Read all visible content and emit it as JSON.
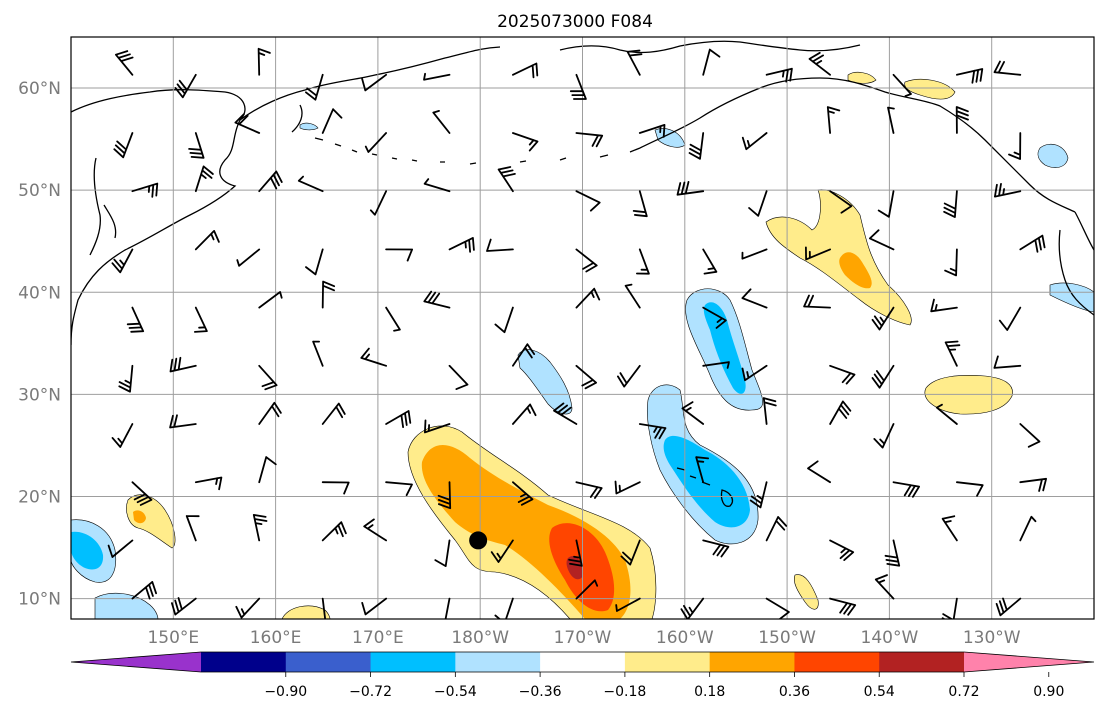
{
  "title": "2025073000 F084",
  "map": {
    "lat_range": [
      8,
      65
    ],
    "lon_range": [
      140,
      240
    ],
    "lat_ticks": [
      {
        "value": 10,
        "label": "10°N"
      },
      {
        "value": 20,
        "label": "20°N"
      },
      {
        "value": 30,
        "label": "30°N"
      },
      {
        "value": 40,
        "label": "40°N"
      },
      {
        "value": 50,
        "label": "50°N"
      },
      {
        "value": 60,
        "label": "60°N"
      }
    ],
    "lon_ticks": [
      {
        "value": 150,
        "label": "150°E"
      },
      {
        "value": 160,
        "label": "160°E"
      },
      {
        "value": 170,
        "label": "170°E"
      },
      {
        "value": 180,
        "label": "180°W"
      },
      {
        "value": 190,
        "label": "170°W"
      },
      {
        "value": 200,
        "label": "160°W"
      },
      {
        "value": 210,
        "label": "150°W"
      },
      {
        "value": 220,
        "label": "140°W"
      },
      {
        "value": 230,
        "label": "130°W"
      }
    ],
    "gridlines": true,
    "marker": {
      "lon": 179.8,
      "lat": 15.7,
      "color": "#000000"
    }
  },
  "colorbar": {
    "levels": [
      "−0.90",
      "−0.72",
      "−0.54",
      "−0.36",
      "−0.18",
      "0.18",
      "0.36",
      "0.54",
      "0.72",
      "0.90"
    ],
    "colors": [
      "#9932cc",
      "#00008b",
      "#3a5fcd",
      "#00bfff",
      "#b0e2ff",
      "#ffffff",
      "#ffec8b",
      "#ffa500",
      "#ff4500",
      "#b22222",
      "#ff82ab"
    ],
    "extend": "both"
  },
  "colors": {
    "light_blue": "#b0e2ff",
    "blue": "#00bfff",
    "light_yellow": "#ffec8b",
    "orange": "#ffa500",
    "red_orange": "#ff4500",
    "dark_red": "#b22222"
  }
}
